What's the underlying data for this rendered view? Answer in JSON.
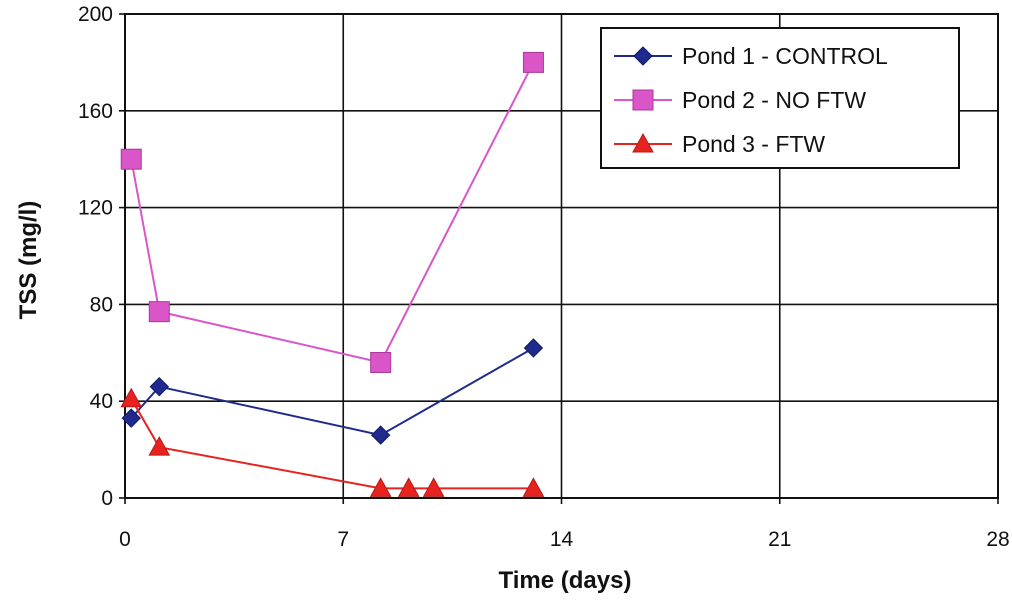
{
  "chart_data": {
    "type": "line",
    "xlabel": "Time (days)",
    "ylabel": "TSS (mg/l)",
    "xlim": [
      0,
      28
    ],
    "ylim": [
      0,
      200
    ],
    "x_ticks": [
      "0",
      "7",
      "14",
      "21",
      "28"
    ],
    "y_ticks": [
      "0",
      "40",
      "80",
      "120",
      "160",
      "200"
    ],
    "grid": true,
    "legend_position": "top-right",
    "series": [
      {
        "name": "Pond 1 - CONTROL",
        "color": "#1f2a8c",
        "marker": "diamond",
        "x": [
          0.2,
          1.1,
          8.2,
          13.1
        ],
        "y": [
          33,
          46,
          26,
          62
        ]
      },
      {
        "name": "Pond 2 - NO FTW",
        "color": "#d955c8",
        "marker": "square",
        "x": [
          0.2,
          1.1,
          8.2,
          13.1
        ],
        "y": [
          140,
          77,
          56,
          180
        ]
      },
      {
        "name": "Pond 3 - FTW",
        "color": "#e8231f",
        "marker": "triangle",
        "x": [
          0.2,
          1.1,
          8.2,
          9.1,
          9.9,
          13.1
        ],
        "y": [
          41,
          21,
          4,
          4,
          4,
          4
        ]
      }
    ]
  }
}
